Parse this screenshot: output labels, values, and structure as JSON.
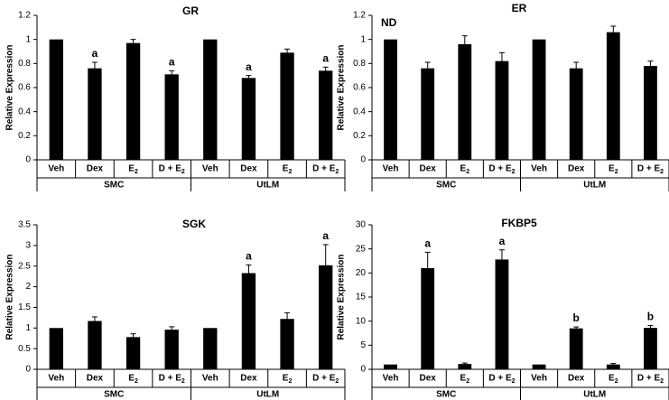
{
  "chart_data": [
    {
      "type": "bar",
      "title": "GR",
      "ylabel": "Relative Expression",
      "ylim": [
        0,
        1.2
      ],
      "yticks": [
        "0",
        "0.2",
        "0.4",
        "0.6",
        "0.8",
        "1",
        "1.2"
      ],
      "groups": [
        "SMC",
        "UtLM"
      ],
      "categories": [
        "Veh",
        "Dex",
        "E2",
        "D + E2",
        "Veh",
        "Dex",
        "E2",
        "D + E2"
      ],
      "values": [
        1.0,
        0.76,
        0.97,
        0.71,
        1.0,
        0.68,
        0.89,
        0.74
      ],
      "errors": [
        0,
        0.05,
        0.03,
        0.03,
        0,
        0.02,
        0.03,
        0.03
      ],
      "labels": [
        "",
        "a",
        "",
        "a",
        "",
        "a",
        "",
        "a"
      ],
      "note": ""
    },
    {
      "type": "bar",
      "title": "ER",
      "ylabel": "Relative Expression",
      "ylim": [
        0,
        1.2
      ],
      "yticks": [
        "0",
        "0.2",
        "0.4",
        "0.6",
        "0.8",
        "1",
        "1.2"
      ],
      "groups": [
        "SMC",
        "UtLM"
      ],
      "categories": [
        "Veh",
        "Dex",
        "E2",
        "D + E2",
        "Veh",
        "Dex",
        "E2",
        "D + E2"
      ],
      "values": [
        1.0,
        0.76,
        0.96,
        0.82,
        1.0,
        0.76,
        1.06,
        0.78
      ],
      "errors": [
        0,
        0.05,
        0.07,
        0.07,
        0,
        0.05,
        0.05,
        0.04
      ],
      "labels": [
        "",
        "",
        "",
        "",
        "",
        "",
        "",
        ""
      ],
      "note": "ND"
    },
    {
      "type": "bar",
      "title": "SGK",
      "ylabel": "Relative Expression",
      "ylim": [
        0,
        3.5
      ],
      "yticks": [
        "0",
        "0.5",
        "1",
        "1.5",
        "2",
        "2.5",
        "3",
        "3.5"
      ],
      "groups": [
        "SMC",
        "UtLM"
      ],
      "categories": [
        "Veh",
        "Dex",
        "E2",
        "D + E2",
        "Veh",
        "Dex",
        "E2",
        "D + E2"
      ],
      "values": [
        1.0,
        1.17,
        0.78,
        0.96,
        1.0,
        2.33,
        1.22,
        2.52
      ],
      "errors": [
        0,
        0.1,
        0.08,
        0.07,
        0,
        0.2,
        0.15,
        0.5
      ],
      "labels": [
        "",
        "",
        "",
        "",
        "",
        "a",
        "",
        "a"
      ],
      "note": ""
    },
    {
      "type": "bar",
      "title": "FKBP5",
      "ylabel": "Relative Expression",
      "ylim": [
        0,
        30
      ],
      "yticks": [
        "0",
        "5",
        "10",
        "15",
        "20",
        "25",
        "30"
      ],
      "groups": [
        "SMC",
        "UtLM"
      ],
      "categories": [
        "Veh",
        "Dex",
        "E2",
        "D + E2",
        "Veh",
        "Dex",
        "E2",
        "D + E2"
      ],
      "values": [
        1.0,
        21.0,
        1.1,
        22.8,
        1.0,
        8.5,
        1.0,
        8.6
      ],
      "errors": [
        0,
        3.3,
        0.2,
        2.0,
        0,
        0.3,
        0.2,
        0.5
      ],
      "labels": [
        "",
        "a",
        "",
        "a",
        "",
        "b",
        "",
        "b"
      ],
      "note": ""
    }
  ]
}
